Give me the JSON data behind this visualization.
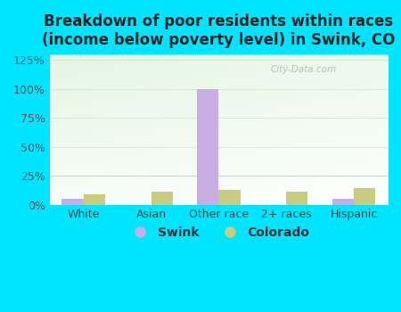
{
  "title": "Breakdown of poor residents within races\n(income below poverty level) in Swink, CO",
  "categories": [
    "White",
    "Asian",
    "Other race",
    "2+ races",
    "Hispanic"
  ],
  "swink_values": [
    5,
    0,
    100,
    0,
    5
  ],
  "colorado_values": [
    9,
    11,
    13,
    11,
    14
  ],
  "swink_color": "#c9aee5",
  "colorado_color": "#c8cc7e",
  "bar_width": 0.32,
  "ylim": [
    0,
    130
  ],
  "yticks": [
    0,
    25,
    50,
    75,
    100,
    125
  ],
  "ytick_labels": [
    "0%",
    "25%",
    "50%",
    "75%",
    "100%",
    "125%"
  ],
  "bg_outer": "#00e5ff",
  "title_fontsize": 12,
  "tick_fontsize": 9,
  "legend_fontsize": 10,
  "grid_color_100": "#ddddee",
  "grid_color_25": "#ffcccc",
  "watermark": "City-Data.com"
}
